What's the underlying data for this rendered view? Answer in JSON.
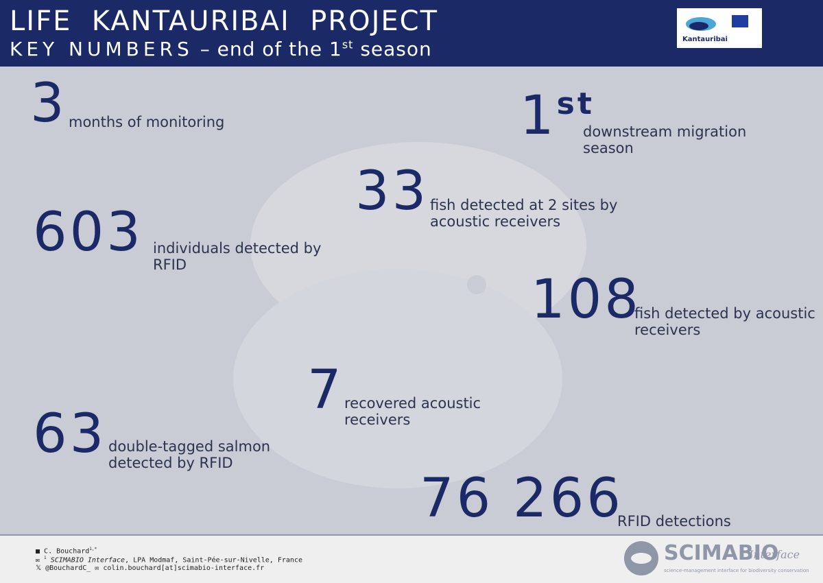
{
  "header": {
    "title": "LIFE  KANTAURIBAI  PROJECT",
    "subtitle_main": "KEY NUMBERS",
    "subtitle_rest": "– end of the 1",
    "subtitle_sup": "st",
    "subtitle_end": "season",
    "logo_text": "Kantauribai"
  },
  "stats": [
    {
      "number": "3",
      "label_lines": [
        "months of monitoring"
      ]
    },
    {
      "number": "1",
      "suffix": "st",
      "label_lines": [
        "downstream migration",
        "season"
      ]
    },
    {
      "number": "33",
      "label_lines": [
        "fish detected at 2 sites by",
        "acoustic receivers"
      ]
    },
    {
      "number": "603",
      "label_lines": [
        "individuals detected by",
        "RFID"
      ]
    },
    {
      "number": "108",
      "label_lines": [
        "fish detected by acoustic",
        "receivers"
      ]
    },
    {
      "number": "7",
      "label_lines": [
        "recovered acoustic",
        "receivers"
      ]
    },
    {
      "number": "63",
      "label_lines": [
        "double-tagged salmon",
        "detected by RFID"
      ]
    },
    {
      "number": "76 266",
      "label_lines": [
        "RFID detections"
      ]
    }
  ],
  "footer": {
    "author": "C. Bouchard",
    "author_sup": "1,*",
    "affil_sup": "1",
    "affil_org": "SCIMABIO Interface",
    "affil_rest": ", LPA Modmaf, Saint-Pée-sur-Nivelle, France",
    "twitter": "@BouchardC_",
    "email": "colin.bouchard[at]scimabio-interface.fr",
    "brand": "SCIMABIO",
    "brand_script": "Interface",
    "brand_tagline": "science-management interface for biodiversity conservation"
  }
}
